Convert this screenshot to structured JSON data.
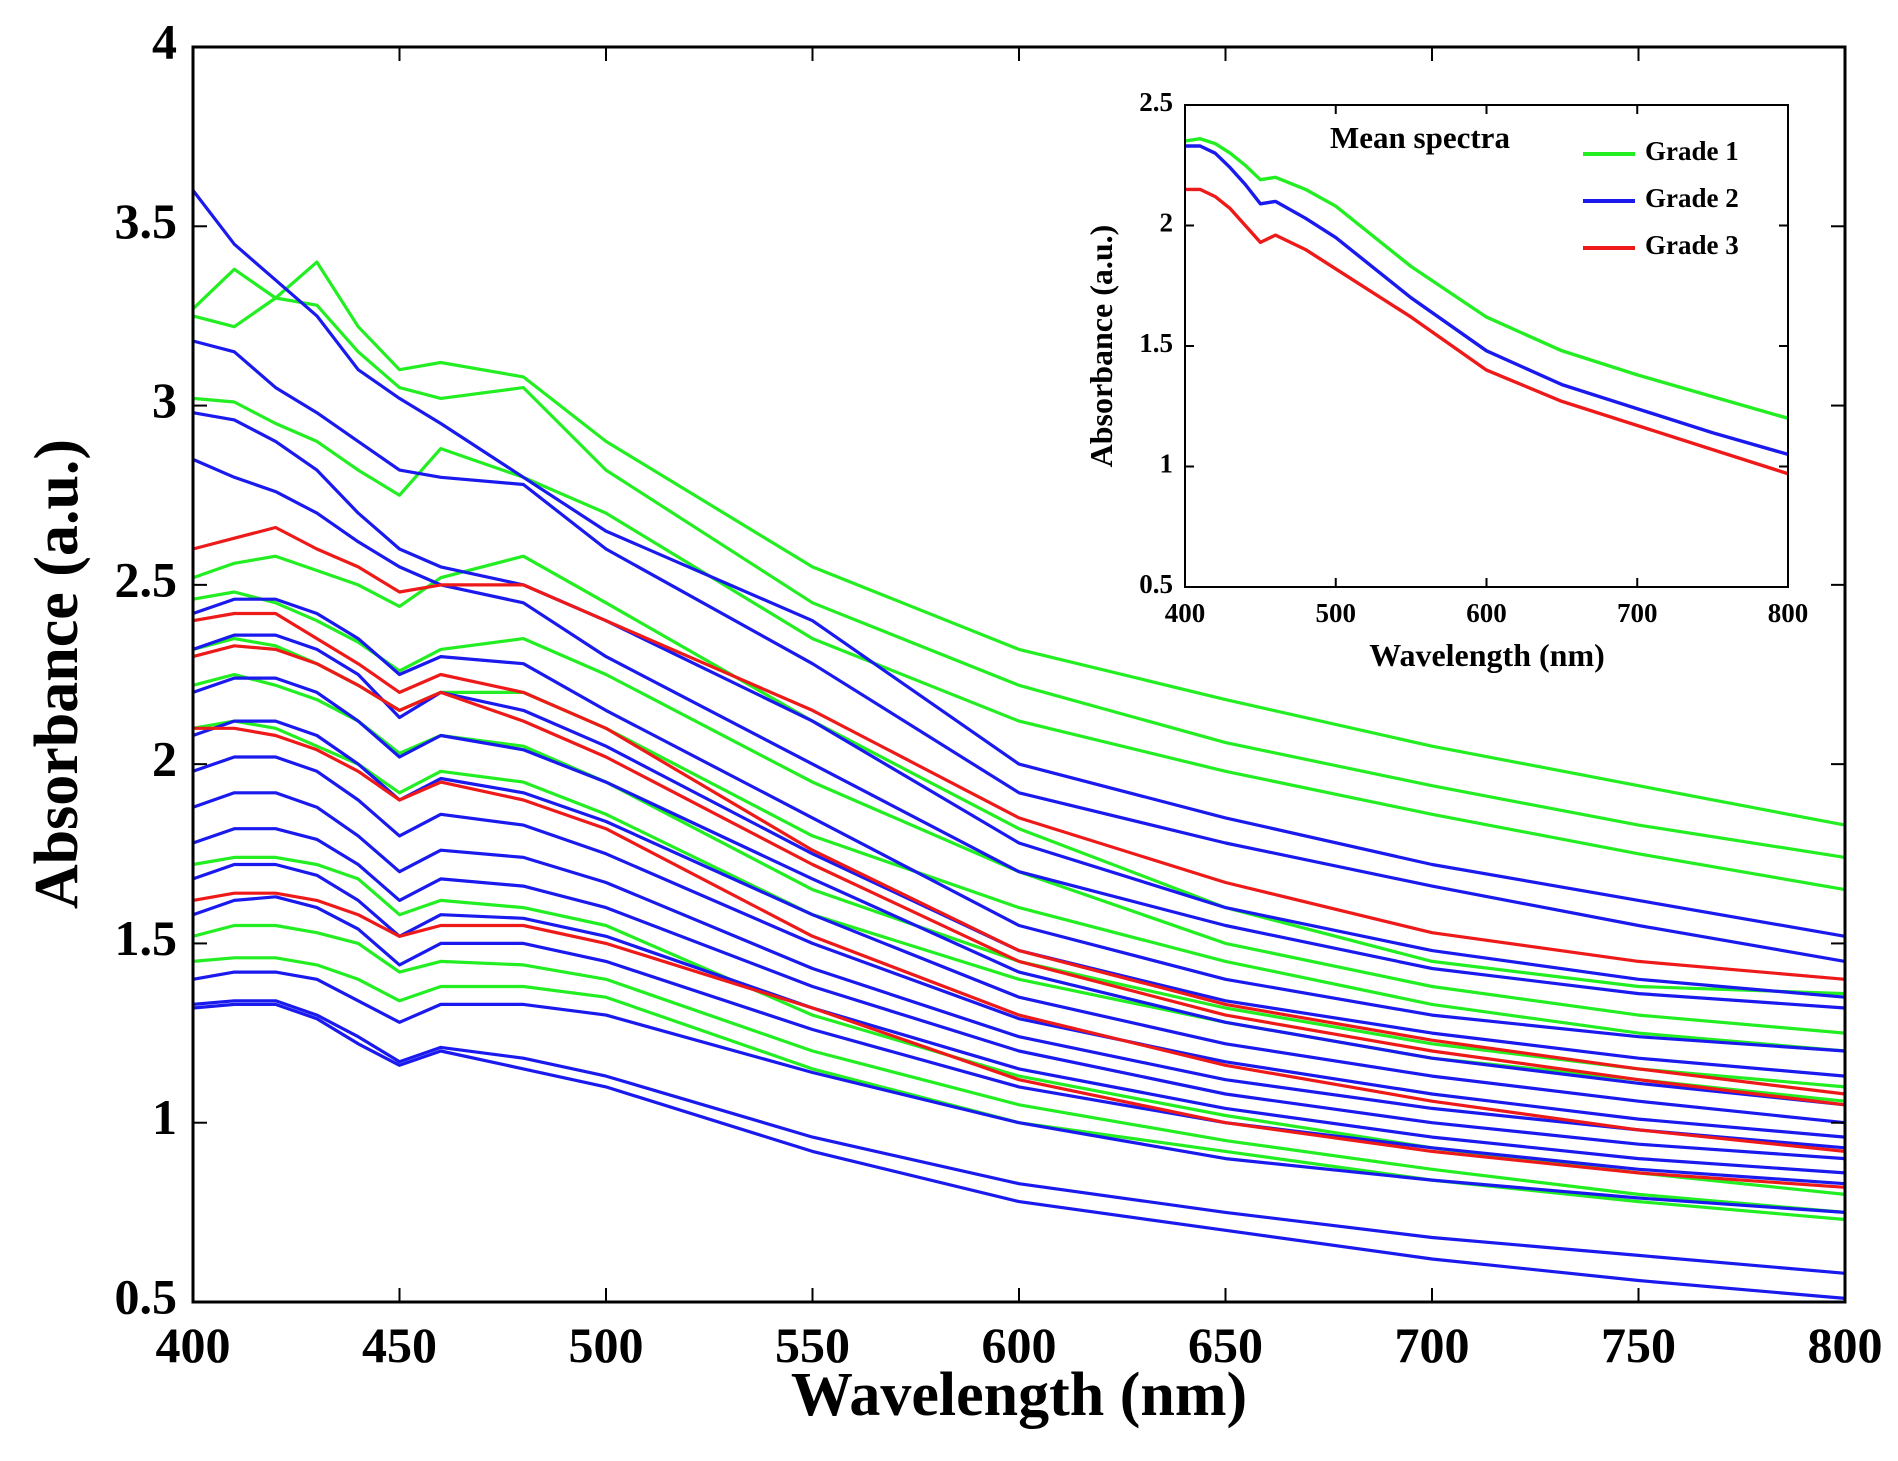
{
  "chart_data": [
    {
      "id": "main",
      "type": "line",
      "title": "",
      "xlabel": "Wavelength (nm)",
      "ylabel": "Absorbance (a.u.)",
      "xlim": [
        400,
        800
      ],
      "ylim": [
        0.5,
        4
      ],
      "xticks": [
        400,
        450,
        500,
        550,
        600,
        650,
        700,
        750,
        800
      ],
      "xtick_labels": [
        "400",
        "450",
        "500",
        "550",
        "600",
        "650",
        "700",
        "750",
        "800"
      ],
      "yticks": [
        0.5,
        1,
        1.5,
        2,
        2.5,
        3,
        3.5,
        4
      ],
      "ytick_labels": [
        "0.5",
        "1",
        "1.5",
        "2",
        "2.5",
        "3",
        "3.5",
        "4"
      ],
      "grid": false,
      "x": [
        400,
        410,
        420,
        430,
        440,
        450,
        460,
        480,
        500,
        550,
        600,
        650,
        700,
        750,
        800
      ],
      "series": [
        {
          "name": "Grade 1",
          "color": "#22ee22",
          "values": [
            3.27,
            3.38,
            3.3,
            3.4,
            3.22,
            3.1,
            3.12,
            3.08,
            2.9,
            2.55,
            2.32,
            2.18,
            2.05,
            1.94,
            1.83
          ]
        },
        {
          "name": "Grade 1",
          "color": "#22ee22",
          "values": [
            3.25,
            3.22,
            3.3,
            3.28,
            3.15,
            3.05,
            3.02,
            3.05,
            2.82,
            2.45,
            2.22,
            2.06,
            1.94,
            1.83,
            1.74
          ]
        },
        {
          "name": "Grade 1",
          "color": "#22ee22",
          "values": [
            3.02,
            3.01,
            2.95,
            2.9,
            2.82,
            2.75,
            2.88,
            2.8,
            2.7,
            2.35,
            2.12,
            1.98,
            1.86,
            1.75,
            1.65
          ]
        },
        {
          "name": "Grade 1",
          "color": "#22ee22",
          "values": [
            2.52,
            2.56,
            2.58,
            2.54,
            2.5,
            2.44,
            2.52,
            2.58,
            2.45,
            2.12,
            1.82,
            1.6,
            1.45,
            1.38,
            1.36
          ]
        },
        {
          "name": "Grade 1",
          "color": "#22ee22",
          "values": [
            2.46,
            2.48,
            2.45,
            2.4,
            2.34,
            2.26,
            2.32,
            2.35,
            2.25,
            1.95,
            1.7,
            1.5,
            1.38,
            1.3,
            1.25
          ]
        },
        {
          "name": "Grade 1",
          "color": "#22ee22",
          "values": [
            2.32,
            2.35,
            2.33,
            2.28,
            2.22,
            2.15,
            2.2,
            2.2,
            2.1,
            1.8,
            1.6,
            1.45,
            1.33,
            1.25,
            1.2
          ]
        },
        {
          "name": "Grade 1",
          "color": "#22ee22",
          "values": [
            2.22,
            2.25,
            2.22,
            2.18,
            2.12,
            2.03,
            2.08,
            2.05,
            1.95,
            1.65,
            1.45,
            1.32,
            1.22,
            1.15,
            1.1
          ]
        },
        {
          "name": "Grade 1",
          "color": "#22ee22",
          "values": [
            2.1,
            2.12,
            2.1,
            2.05,
            2.0,
            1.92,
            1.98,
            1.95,
            1.86,
            1.58,
            1.4,
            1.28,
            1.18,
            1.12,
            1.06
          ]
        },
        {
          "name": "Grade 1",
          "color": "#22ee22",
          "values": [
            1.72,
            1.74,
            1.74,
            1.72,
            1.68,
            1.58,
            1.62,
            1.6,
            1.55,
            1.3,
            1.13,
            1.02,
            0.93,
            0.86,
            0.8
          ]
        },
        {
          "name": "Grade 1",
          "color": "#22ee22",
          "values": [
            1.52,
            1.55,
            1.55,
            1.53,
            1.5,
            1.42,
            1.45,
            1.44,
            1.4,
            1.2,
            1.05,
            0.95,
            0.87,
            0.8,
            0.75
          ]
        },
        {
          "name": "Grade 1",
          "color": "#22ee22",
          "values": [
            1.45,
            1.46,
            1.46,
            1.44,
            1.4,
            1.34,
            1.38,
            1.38,
            1.35,
            1.15,
            1.0,
            0.92,
            0.84,
            0.78,
            0.73
          ]
        },
        {
          "name": "Grade 2",
          "color": "#1a1aee",
          "values": [
            3.6,
            3.45,
            3.35,
            3.25,
            3.1,
            3.02,
            2.95,
            2.8,
            2.65,
            2.4,
            2.0,
            1.85,
            1.72,
            1.62,
            1.52
          ]
        },
        {
          "name": "Grade 2",
          "color": "#1a1aee",
          "values": [
            3.18,
            3.15,
            3.05,
            2.98,
            2.9,
            2.82,
            2.8,
            2.78,
            2.6,
            2.28,
            1.92,
            1.78,
            1.66,
            1.55,
            1.45
          ]
        },
        {
          "name": "Grade 2",
          "color": "#1a1aee",
          "values": [
            2.98,
            2.96,
            2.9,
            2.82,
            2.7,
            2.6,
            2.55,
            2.5,
            2.4,
            2.12,
            1.78,
            1.6,
            1.48,
            1.4,
            1.35
          ]
        },
        {
          "name": "Grade 2",
          "color": "#1a1aee",
          "values": [
            2.85,
            2.8,
            2.76,
            2.7,
            2.62,
            2.55,
            2.5,
            2.45,
            2.3,
            2.0,
            1.7,
            1.55,
            1.43,
            1.36,
            1.32
          ]
        },
        {
          "name": "Grade 2",
          "color": "#1a1aee",
          "values": [
            2.42,
            2.46,
            2.46,
            2.42,
            2.35,
            2.25,
            2.3,
            2.28,
            2.15,
            1.85,
            1.55,
            1.4,
            1.3,
            1.24,
            1.2
          ]
        },
        {
          "name": "Grade 2",
          "color": "#1a1aee",
          "values": [
            2.32,
            2.36,
            2.36,
            2.32,
            2.25,
            2.13,
            2.2,
            2.15,
            2.05,
            1.75,
            1.48,
            1.34,
            1.25,
            1.18,
            1.13
          ]
        },
        {
          "name": "Grade 2",
          "color": "#1a1aee",
          "values": [
            2.2,
            2.24,
            2.24,
            2.2,
            2.12,
            2.02,
            2.08,
            2.04,
            1.95,
            1.68,
            1.42,
            1.28,
            1.18,
            1.11,
            1.05
          ]
        },
        {
          "name": "Grade 2",
          "color": "#1a1aee",
          "values": [
            2.08,
            2.12,
            2.12,
            2.08,
            2.0,
            1.9,
            1.96,
            1.92,
            1.84,
            1.58,
            1.35,
            1.22,
            1.13,
            1.06,
            1.0
          ]
        },
        {
          "name": "Grade 2",
          "color": "#1a1aee",
          "values": [
            1.98,
            2.02,
            2.02,
            1.98,
            1.9,
            1.8,
            1.86,
            1.83,
            1.75,
            1.5,
            1.29,
            1.17,
            1.08,
            1.01,
            0.96
          ]
        },
        {
          "name": "Grade 2",
          "color": "#1a1aee",
          "values": [
            1.88,
            1.92,
            1.92,
            1.88,
            1.8,
            1.7,
            1.76,
            1.74,
            1.67,
            1.43,
            1.24,
            1.12,
            1.04,
            0.98,
            0.93
          ]
        },
        {
          "name": "Grade 2",
          "color": "#1a1aee",
          "values": [
            1.78,
            1.82,
            1.82,
            1.79,
            1.72,
            1.62,
            1.68,
            1.66,
            1.6,
            1.38,
            1.2,
            1.08,
            1.0,
            0.94,
            0.9
          ]
        },
        {
          "name": "Grade 2",
          "color": "#1a1aee",
          "values": [
            1.68,
            1.72,
            1.72,
            1.69,
            1.62,
            1.52,
            1.58,
            1.57,
            1.52,
            1.32,
            1.15,
            1.04,
            0.96,
            0.9,
            0.86
          ]
        },
        {
          "name": "Grade 2",
          "color": "#1a1aee",
          "values": [
            1.58,
            1.62,
            1.63,
            1.6,
            1.54,
            1.44,
            1.5,
            1.5,
            1.45,
            1.26,
            1.1,
            1.0,
            0.93,
            0.87,
            0.83
          ]
        },
        {
          "name": "Grade 2",
          "color": "#1a1aee",
          "values": [
            1.4,
            1.42,
            1.42,
            1.4,
            1.34,
            1.28,
            1.33,
            1.33,
            1.3,
            1.14,
            1.0,
            0.9,
            0.84,
            0.79,
            0.75
          ]
        },
        {
          "name": "Grade 2",
          "color": "#1a1aee",
          "values": [
            1.33,
            1.34,
            1.34,
            1.3,
            1.24,
            1.17,
            1.21,
            1.18,
            1.13,
            0.96,
            0.83,
            0.75,
            0.68,
            0.63,
            0.58
          ]
        },
        {
          "name": "Grade 2",
          "color": "#1a1aee",
          "values": [
            1.32,
            1.33,
            1.33,
            1.29,
            1.22,
            1.16,
            1.2,
            1.15,
            1.1,
            0.92,
            0.78,
            0.7,
            0.62,
            0.56,
            0.51
          ]
        },
        {
          "name": "Grade 3",
          "color": "#ee1a1a",
          "values": [
            2.6,
            2.63,
            2.66,
            2.6,
            2.55,
            2.48,
            2.5,
            2.5,
            2.4,
            2.15,
            1.85,
            1.67,
            1.53,
            1.45,
            1.4
          ]
        },
        {
          "name": "Grade 3",
          "color": "#ee1a1a",
          "values": [
            2.4,
            2.42,
            2.42,
            2.35,
            2.28,
            2.2,
            2.25,
            2.2,
            2.1,
            1.76,
            1.48,
            1.33,
            1.23,
            1.15,
            1.08
          ]
        },
        {
          "name": "Grade 3",
          "color": "#ee1a1a",
          "values": [
            2.3,
            2.33,
            2.32,
            2.28,
            2.22,
            2.15,
            2.2,
            2.12,
            2.02,
            1.72,
            1.45,
            1.3,
            1.2,
            1.12,
            1.05
          ]
        },
        {
          "name": "Grade 3",
          "color": "#ee1a1a",
          "values": [
            2.1,
            2.1,
            2.08,
            2.04,
            1.98,
            1.9,
            1.95,
            1.9,
            1.82,
            1.52,
            1.3,
            1.16,
            1.06,
            0.98,
            0.92
          ]
        },
        {
          "name": "Grade 3",
          "color": "#ee1a1a",
          "values": [
            1.62,
            1.64,
            1.64,
            1.62,
            1.58,
            1.52,
            1.55,
            1.55,
            1.5,
            1.32,
            1.12,
            1.0,
            0.92,
            0.86,
            0.82
          ]
        }
      ]
    },
    {
      "id": "inset",
      "type": "line",
      "title": "Mean spectra",
      "xlabel": "Wavelength (nm)",
      "ylabel": "Absorbance (a.u.)",
      "xlim": [
        400,
        800
      ],
      "ylim": [
        0.5,
        2.5
      ],
      "xticks": [
        400,
        500,
        600,
        700,
        800
      ],
      "xtick_labels": [
        "400",
        "500",
        "600",
        "700",
        "800"
      ],
      "yticks": [
        0.5,
        1,
        1.5,
        2,
        2.5
      ],
      "ytick_labels": [
        "0.5",
        "1",
        "1.5",
        "2",
        "2.5"
      ],
      "grid": false,
      "legend_position": "top-right",
      "x": [
        400,
        410,
        420,
        430,
        440,
        450,
        460,
        480,
        500,
        550,
        600,
        650,
        700,
        750,
        800
      ],
      "series": [
        {
          "name": "Grade 1",
          "color": "#22ee22",
          "values": [
            2.35,
            2.36,
            2.34,
            2.3,
            2.25,
            2.19,
            2.2,
            2.15,
            2.08,
            1.83,
            1.62,
            1.48,
            1.38,
            1.29,
            1.2
          ]
        },
        {
          "name": "Grade 2",
          "color": "#1a1aee",
          "values": [
            2.33,
            2.33,
            2.3,
            2.24,
            2.17,
            2.09,
            2.1,
            2.03,
            1.95,
            1.7,
            1.48,
            1.34,
            1.24,
            1.14,
            1.05
          ]
        },
        {
          "name": "Grade 3",
          "color": "#ee1a1a",
          "values": [
            2.15,
            2.15,
            2.12,
            2.07,
            2.0,
            1.93,
            1.96,
            1.9,
            1.82,
            1.62,
            1.4,
            1.27,
            1.17,
            1.07,
            0.97
          ]
        }
      ],
      "legend": [
        "Grade 1",
        "Grade 2",
        "Grade 3"
      ]
    }
  ]
}
